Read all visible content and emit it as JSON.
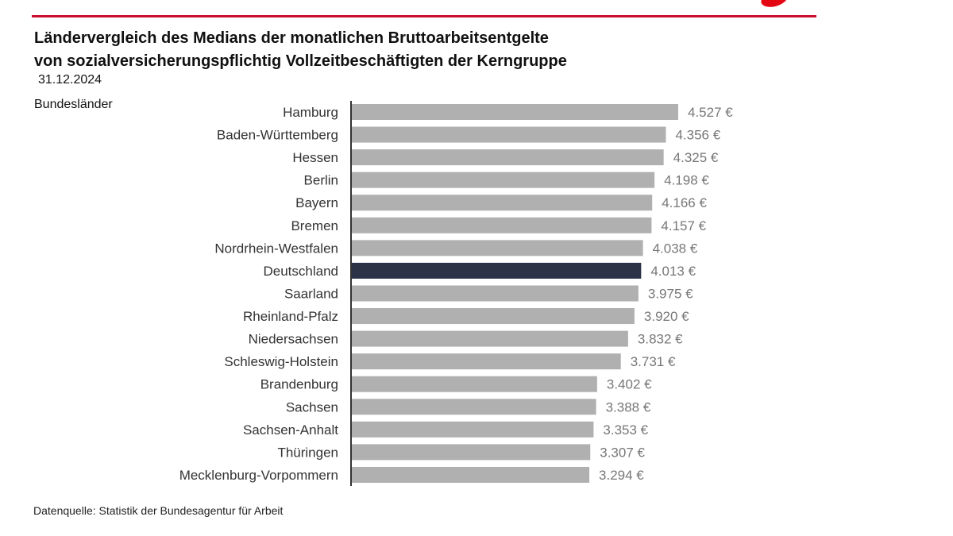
{
  "title_line1": "Ländervergleich des Medians der monatlichen Bruttoarbeitsentgelte",
  "title_line2": "von sozialversicherungspflichtig Vollzeitbeschäftigten der Kerngruppe",
  "date": "31.12.2024",
  "source": "Datenquelle: Statistik der Bundesagentur für Arbeit",
  "colors": {
    "bar": "#b0b0b0",
    "highlight": "#2c3347",
    "accent": "#c8102e"
  },
  "chart_data": {
    "type": "bar",
    "orientation": "horizontal",
    "ylabel": "Bundesländer",
    "categories": [
      "Hamburg",
      "Baden-Württemberg",
      "Hessen",
      "Berlin",
      "Bayern",
      "Bremen",
      "Nordrhein-Westfalen",
      "Deutschland",
      "Saarland",
      "Rheinland-Pfalz",
      "Niedersachsen",
      "Schleswig-Holstein",
      "Brandenburg",
      "Sachsen",
      "Sachsen-Anhalt",
      "Thüringen",
      "Mecklenburg-Vorpommern"
    ],
    "values": [
      4527,
      4356,
      4325,
      4198,
      4166,
      4157,
      4038,
      4013,
      3975,
      3920,
      3832,
      3731,
      3402,
      3388,
      3353,
      3307,
      3294
    ],
    "labels": [
      "4.527 €",
      "4.356 €",
      "4.325 €",
      "4.198 €",
      "4.166 €",
      "4.157 €",
      "4.038 €",
      "4.013 €",
      "3.975 €",
      "3.920 €",
      "3.832 €",
      "3.731 €",
      "3.402 €",
      "3.388 €",
      "3.353 €",
      "3.307 €",
      "3.294 €"
    ],
    "highlight": "Deutschland",
    "unit": "€",
    "xlim": [
      0,
      4527
    ],
    "grid": false
  }
}
